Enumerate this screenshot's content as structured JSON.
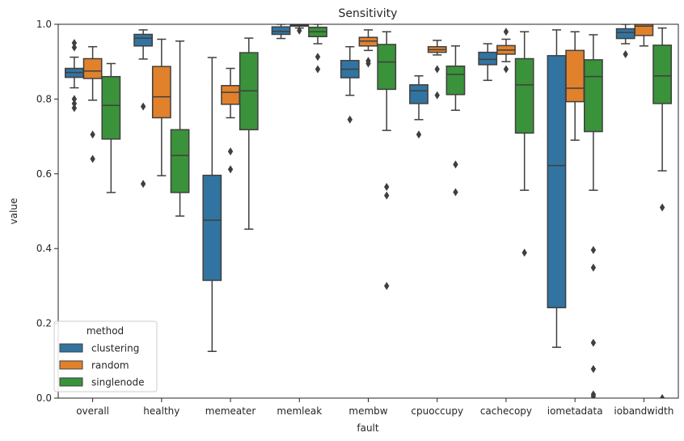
{
  "chart_data": {
    "type": "boxplot",
    "title": "Sensitivity",
    "xlabel": "fault",
    "ylabel": "value",
    "ylim": [
      0,
      1
    ],
    "yticks": [
      "0.0",
      "0.2",
      "0.4",
      "0.6",
      "0.8",
      "1.0"
    ],
    "categories": [
      "overall",
      "healthy",
      "memeater",
      "memleak",
      "membw",
      "cpuoccupy",
      "cachecopy",
      "iometadata",
      "iobandwidth"
    ],
    "legend": {
      "title": "method",
      "placement": "lower-left"
    },
    "series": [
      {
        "name": "clustering",
        "color": "#3274a1",
        "boxes": [
          {
            "whislo": 0.83,
            "q1": 0.858,
            "med": 0.871,
            "q3": 0.882,
            "whishi": 0.912,
            "fliers": [
              0.95,
              0.938,
              0.8,
              0.788,
              0.776
            ]
          },
          {
            "whislo": 0.907,
            "q1": 0.942,
            "med": 0.963,
            "q3": 0.973,
            "whishi": 0.985,
            "fliers": [
              0.78,
              0.573
            ]
          },
          {
            "whislo": 0.125,
            "q1": 0.315,
            "med": 0.476,
            "q3": 0.596,
            "whishi": 0.911,
            "fliers": []
          },
          {
            "whislo": 0.962,
            "q1": 0.973,
            "med": 0.981,
            "q3": 0.993,
            "whishi": 1.0,
            "fliers": []
          },
          {
            "whislo": 0.81,
            "q1": 0.857,
            "med": 0.88,
            "q3": 0.903,
            "whishi": 0.94,
            "fliers": [
              0.745
            ]
          },
          {
            "whislo": 0.745,
            "q1": 0.788,
            "med": 0.822,
            "q3": 0.838,
            "whishi": 0.862,
            "fliers": [
              0.705
            ]
          },
          {
            "whislo": 0.85,
            "q1": 0.892,
            "med": 0.906,
            "q3": 0.925,
            "whishi": 0.948,
            "fliers": []
          },
          {
            "whislo": 0.136,
            "q1": 0.242,
            "med": 0.622,
            "q3": 0.916,
            "whishi": 0.985,
            "fliers": []
          },
          {
            "whislo": 0.948,
            "q1": 0.962,
            "med": 0.978,
            "q3": 0.988,
            "whishi": 1.0,
            "fliers": [
              0.92
            ]
          }
        ]
      },
      {
        "name": "random",
        "color": "#e1812c",
        "boxes": [
          {
            "whislo": 0.797,
            "q1": 0.855,
            "med": 0.875,
            "q3": 0.908,
            "whishi": 0.94,
            "fliers": [
              0.705,
              0.64
            ]
          },
          {
            "whislo": 0.595,
            "q1": 0.75,
            "med": 0.806,
            "q3": 0.887,
            "whishi": 0.96,
            "fliers": []
          },
          {
            "whislo": 0.75,
            "q1": 0.786,
            "med": 0.818,
            "q3": 0.836,
            "whishi": 0.882,
            "fliers": [
              0.66,
              0.612
            ]
          },
          {
            "whislo": 0.99,
            "q1": 0.995,
            "med": 0.997,
            "q3": 0.999,
            "whishi": 1.0,
            "fliers": [
              0.983
            ]
          },
          {
            "whislo": 0.93,
            "q1": 0.942,
            "med": 0.955,
            "q3": 0.965,
            "whishi": 0.985,
            "fliers": [
              0.902,
              0.895
            ]
          },
          {
            "whislo": 0.918,
            "q1": 0.925,
            "med": 0.932,
            "q3": 0.94,
            "whishi": 0.957,
            "fliers": [
              0.88,
              0.81
            ]
          },
          {
            "whislo": 0.9,
            "q1": 0.92,
            "med": 0.931,
            "q3": 0.943,
            "whishi": 0.96,
            "fliers": [
              0.98,
              0.88
            ]
          },
          {
            "whislo": 0.69,
            "q1": 0.793,
            "med": 0.829,
            "q3": 0.93,
            "whishi": 0.98,
            "fliers": []
          },
          {
            "whislo": 0.942,
            "q1": 0.97,
            "med": 0.995,
            "q3": 1.0,
            "whishi": 1.0,
            "fliers": []
          }
        ]
      },
      {
        "name": "singlenode",
        "color": "#3a923a",
        "boxes": [
          {
            "whislo": 0.55,
            "q1": 0.693,
            "med": 0.783,
            "q3": 0.86,
            "whishi": 0.895,
            "fliers": []
          },
          {
            "whislo": 0.487,
            "q1": 0.55,
            "med": 0.649,
            "q3": 0.718,
            "whishi": 0.955,
            "fliers": []
          },
          {
            "whislo": 0.452,
            "q1": 0.718,
            "med": 0.822,
            "q3": 0.924,
            "whishi": 0.963,
            "fliers": []
          },
          {
            "whislo": 0.948,
            "q1": 0.967,
            "med": 0.98,
            "q3": 0.992,
            "whishi": 1.0,
            "fliers": [
              0.913,
              0.88
            ]
          },
          {
            "whislo": 0.716,
            "q1": 0.826,
            "med": 0.899,
            "q3": 0.946,
            "whishi": 0.98,
            "fliers": [
              0.565,
              0.542,
              0.3
            ]
          },
          {
            "whislo": 0.77,
            "q1": 0.812,
            "med": 0.866,
            "q3": 0.888,
            "whishi": 0.942,
            "fliers": [
              0.625,
              0.551
            ]
          },
          {
            "whislo": 0.556,
            "q1": 0.709,
            "med": 0.838,
            "q3": 0.908,
            "whishi": 0.98,
            "fliers": [
              0.389
            ]
          },
          {
            "whislo": 0.556,
            "q1": 0.713,
            "med": 0.86,
            "q3": 0.905,
            "whishi": 0.972,
            "fliers": [
              0.396,
              0.349,
              0.148,
              0.078,
              0.01,
              0.005
            ]
          },
          {
            "whislo": 0.608,
            "q1": 0.788,
            "med": 0.862,
            "q3": 0.944,
            "whishi": 0.99,
            "fliers": [
              0.51,
              0.0
            ]
          }
        ]
      }
    ]
  }
}
